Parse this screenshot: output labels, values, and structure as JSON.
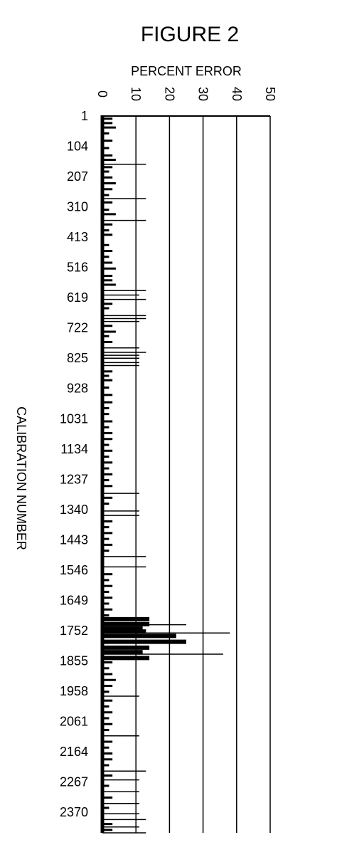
{
  "chart_data": {
    "type": "bar",
    "orientation": "horizontal",
    "title": "FIGURE 2",
    "xlabel": "PERCENT ERROR",
    "ylabel": "CALIBRATION NUMBER",
    "xlim": [
      0,
      50
    ],
    "x_ticks": [
      "0",
      "10",
      "20",
      "30",
      "40",
      "50"
    ],
    "ylim": [
      1,
      2440
    ],
    "y_ticks": [
      "1",
      "104",
      "207",
      "310",
      "413",
      "516",
      "619",
      "722",
      "825",
      "928",
      "1031",
      "1134",
      "1237",
      "1340",
      "1443",
      "1546",
      "1649",
      "1752",
      "1855",
      "1958",
      "2061",
      "2164",
      "2267",
      "2370"
    ],
    "grid": "vertical",
    "series": [
      {
        "style": "long-lines",
        "points": [
          [
            165,
            13
          ],
          [
            282,
            13
          ],
          [
            356,
            13
          ],
          [
            595,
            13
          ],
          [
            610,
            11
          ],
          [
            625,
            13
          ],
          [
            680,
            13
          ],
          [
            690,
            13
          ],
          [
            700,
            11
          ],
          [
            790,
            11
          ],
          [
            805,
            13
          ],
          [
            815,
            11
          ],
          [
            825,
            11
          ],
          [
            840,
            11
          ],
          [
            850,
            11
          ],
          [
            1285,
            11
          ],
          [
            1345,
            11
          ],
          [
            1360,
            11
          ],
          [
            1500,
            13
          ],
          [
            1535,
            13
          ],
          [
            1732,
            25
          ],
          [
            1760,
            38
          ],
          [
            1785,
            25
          ],
          [
            1832,
            36
          ],
          [
            1975,
            11
          ],
          [
            2110,
            11
          ],
          [
            2230,
            13
          ],
          [
            2260,
            11
          ],
          [
            2300,
            11
          ],
          [
            2340,
            11
          ],
          [
            2375,
            11
          ],
          [
            2395,
            13
          ],
          [
            2420,
            11
          ],
          [
            2440,
            13
          ]
        ]
      },
      {
        "style": "thick-block",
        "points": [
          [
            1713,
            14
          ],
          [
            1730,
            14
          ],
          [
            1745,
            12
          ],
          [
            1755,
            13
          ],
          [
            1770,
            22
          ],
          [
            1790,
            25
          ],
          [
            1810,
            14
          ],
          [
            1825,
            12
          ],
          [
            1845,
            14
          ]
        ]
      },
      {
        "style": "short-ticks",
        "points": [
          [
            10,
            3
          ],
          [
            25,
            3
          ],
          [
            40,
            4
          ],
          [
            60,
            2
          ],
          [
            85,
            3
          ],
          [
            110,
            2
          ],
          [
            135,
            3
          ],
          [
            150,
            4
          ],
          [
            175,
            3
          ],
          [
            190,
            2
          ],
          [
            210,
            3
          ],
          [
            230,
            4
          ],
          [
            250,
            3
          ],
          [
            270,
            2
          ],
          [
            295,
            3
          ],
          [
            320,
            2
          ],
          [
            335,
            4
          ],
          [
            370,
            3
          ],
          [
            390,
            2
          ],
          [
            405,
            3
          ],
          [
            440,
            2
          ],
          [
            460,
            3
          ],
          [
            480,
            2
          ],
          [
            500,
            3
          ],
          [
            520,
            4
          ],
          [
            545,
            3
          ],
          [
            560,
            3
          ],
          [
            575,
            4
          ],
          [
            640,
            3
          ],
          [
            655,
            2
          ],
          [
            715,
            3
          ],
          [
            735,
            4
          ],
          [
            750,
            2
          ],
          [
            770,
            3
          ],
          [
            870,
            3
          ],
          [
            885,
            2
          ],
          [
            900,
            3
          ],
          [
            925,
            2
          ],
          [
            950,
            3
          ],
          [
            975,
            3
          ],
          [
            995,
            2
          ],
          [
            1015,
            2
          ],
          [
            1040,
            3
          ],
          [
            1060,
            2
          ],
          [
            1080,
            3
          ],
          [
            1100,
            3
          ],
          [
            1120,
            2
          ],
          [
            1140,
            3
          ],
          [
            1160,
            2
          ],
          [
            1180,
            3
          ],
          [
            1200,
            2
          ],
          [
            1220,
            3
          ],
          [
            1240,
            2
          ],
          [
            1260,
            3
          ],
          [
            1300,
            3
          ],
          [
            1320,
            2
          ],
          [
            1380,
            3
          ],
          [
            1400,
            2
          ],
          [
            1420,
            3
          ],
          [
            1440,
            2
          ],
          [
            1460,
            3
          ],
          [
            1480,
            2
          ],
          [
            1560,
            3
          ],
          [
            1580,
            2
          ],
          [
            1600,
            3
          ],
          [
            1620,
            2
          ],
          [
            1640,
            3
          ],
          [
            1660,
            2
          ],
          [
            1680,
            3
          ],
          [
            1700,
            2
          ],
          [
            1860,
            3
          ],
          [
            1880,
            2
          ],
          [
            1900,
            3
          ],
          [
            1920,
            4
          ],
          [
            1940,
            3
          ],
          [
            1960,
            2
          ],
          [
            1990,
            3
          ],
          [
            2010,
            2
          ],
          [
            2030,
            3
          ],
          [
            2050,
            2
          ],
          [
            2070,
            3
          ],
          [
            2090,
            2
          ],
          [
            2130,
            3
          ],
          [
            2150,
            2
          ],
          [
            2170,
            3
          ],
          [
            2190,
            3
          ],
          [
            2210,
            2
          ],
          [
            2245,
            3
          ],
          [
            2280,
            2
          ],
          [
            2320,
            3
          ],
          [
            2355,
            2
          ],
          [
            2410,
            3
          ],
          [
            2430,
            3
          ]
        ]
      }
    ]
  }
}
